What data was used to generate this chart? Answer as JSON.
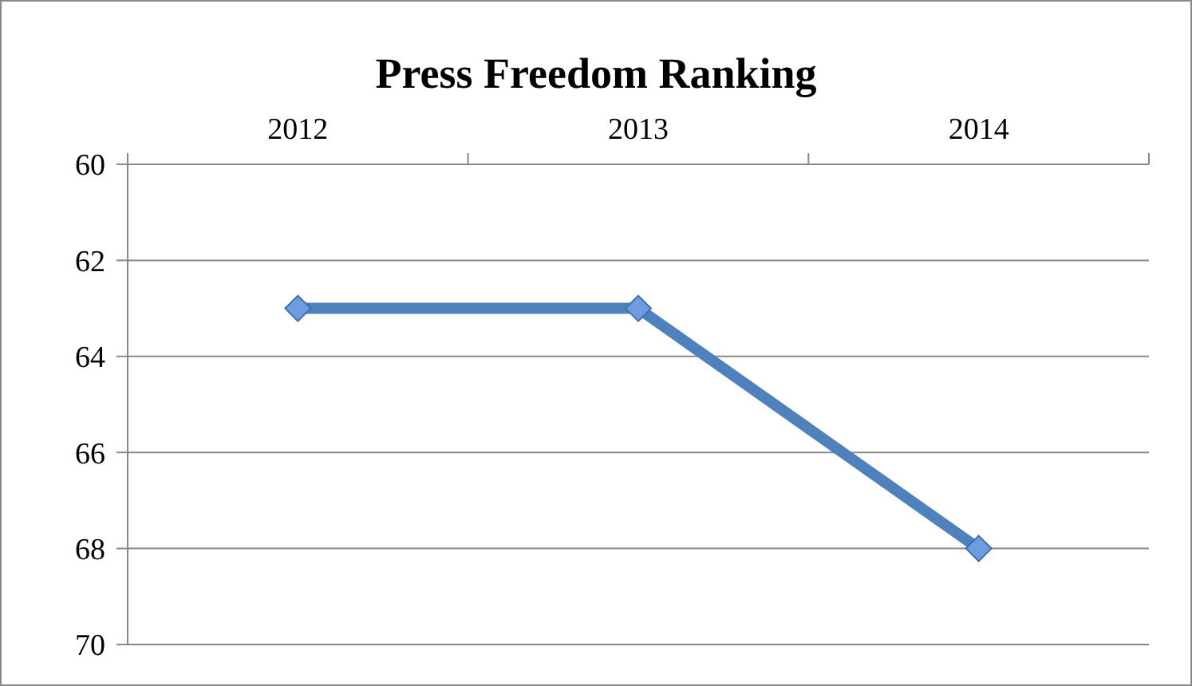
{
  "chart_data": {
    "type": "line",
    "title": "Press Freedom Ranking",
    "categories": [
      "2012",
      "2013",
      "2014"
    ],
    "series": [
      {
        "color": "#4f81bd",
        "values": [
          63,
          63,
          68
        ]
      }
    ],
    "ylim": [
      70,
      60
    ],
    "yticks": [
      60,
      62,
      64,
      66,
      68,
      70
    ],
    "grid": "y",
    "marker": "diamond",
    "line_style": "solid"
  }
}
